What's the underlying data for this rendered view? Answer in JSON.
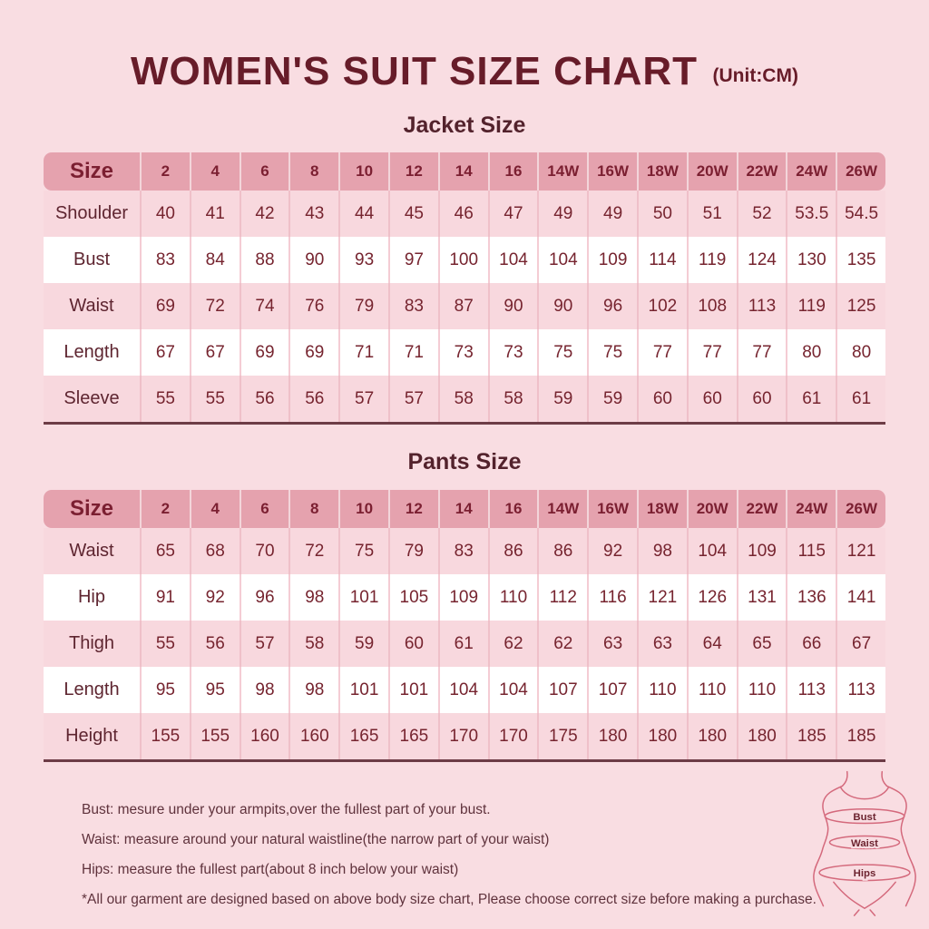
{
  "page": {
    "title": "WOMEN'S SUIT SIZE CHART",
    "unit_label": "(Unit:CM)"
  },
  "jacket_table": {
    "heading": "Jacket Size",
    "header": [
      "Size",
      "2",
      "4",
      "6",
      "8",
      "10",
      "12",
      "14",
      "16",
      "14W",
      "16W",
      "18W",
      "20W",
      "22W",
      "24W",
      "26W"
    ],
    "rows": [
      {
        "label": "Shoulder",
        "values": [
          "40",
          "41",
          "42",
          "43",
          "44",
          "45",
          "46",
          "47",
          "49",
          "49",
          "50",
          "51",
          "52",
          "53.5",
          "54.5"
        ]
      },
      {
        "label": "Bust",
        "values": [
          "83",
          "84",
          "88",
          "90",
          "93",
          "97",
          "100",
          "104",
          "104",
          "109",
          "114",
          "119",
          "124",
          "130",
          "135"
        ]
      },
      {
        "label": "Waist",
        "values": [
          "69",
          "72",
          "74",
          "76",
          "79",
          "83",
          "87",
          "90",
          "90",
          "96",
          "102",
          "108",
          "113",
          "119",
          "125"
        ]
      },
      {
        "label": "Length",
        "values": [
          "67",
          "67",
          "69",
          "69",
          "71",
          "71",
          "73",
          "73",
          "75",
          "75",
          "77",
          "77",
          "77",
          "80",
          "80"
        ]
      },
      {
        "label": "Sleeve",
        "values": [
          "55",
          "55",
          "56",
          "56",
          "57",
          "57",
          "58",
          "58",
          "59",
          "59",
          "60",
          "60",
          "60",
          "61",
          "61"
        ]
      }
    ]
  },
  "pants_table": {
    "heading": "Pants Size",
    "header": [
      "Size",
      "2",
      "4",
      "6",
      "8",
      "10",
      "12",
      "14",
      "16",
      "14W",
      "16W",
      "18W",
      "20W",
      "22W",
      "24W",
      "26W"
    ],
    "rows": [
      {
        "label": "Waist",
        "values": [
          "65",
          "68",
          "70",
          "72",
          "75",
          "79",
          "83",
          "86",
          "86",
          "92",
          "98",
          "104",
          "109",
          "115",
          "121"
        ]
      },
      {
        "label": "Hip",
        "values": [
          "91",
          "92",
          "96",
          "98",
          "101",
          "105",
          "109",
          "110",
          "112",
          "116",
          "121",
          "126",
          "131",
          "136",
          "141"
        ]
      },
      {
        "label": "Thigh",
        "values": [
          "55",
          "56",
          "57",
          "58",
          "59",
          "60",
          "61",
          "62",
          "62",
          "63",
          "63",
          "64",
          "65",
          "66",
          "67"
        ]
      },
      {
        "label": "Length",
        "values": [
          "95",
          "95",
          "98",
          "98",
          "101",
          "101",
          "104",
          "104",
          "107",
          "107",
          "110",
          "110",
          "110",
          "113",
          "113"
        ]
      },
      {
        "label": "Height",
        "values": [
          "155",
          "155",
          "160",
          "160",
          "165",
          "165",
          "170",
          "170",
          "175",
          "180",
          "180",
          "180",
          "180",
          "185",
          "185"
        ]
      }
    ]
  },
  "notes": [
    "Bust: mesure under your armpits,over the fullest part of your bust.",
    "Waist: measure around your natural waistline(the narrow part of your waist)",
    "Hips: measure the fullest part(about 8 inch below your waist)",
    "*All our garment are designed based on above body size chart, Please choose correct size before making a purchase."
  ],
  "figure": {
    "labels": {
      "bust": "Bust",
      "waist": "Waist",
      "hips": "Hips"
    }
  },
  "colors": {
    "background": "#f9dde2",
    "header_row": "#e5a2ae",
    "row_pink": "#f8d8de",
    "row_white": "#ffffff",
    "title_text": "#671c29",
    "cell_text": "#76242f",
    "table_bottom_border": "#6d3c46",
    "figure_stroke": "#d4697c"
  }
}
